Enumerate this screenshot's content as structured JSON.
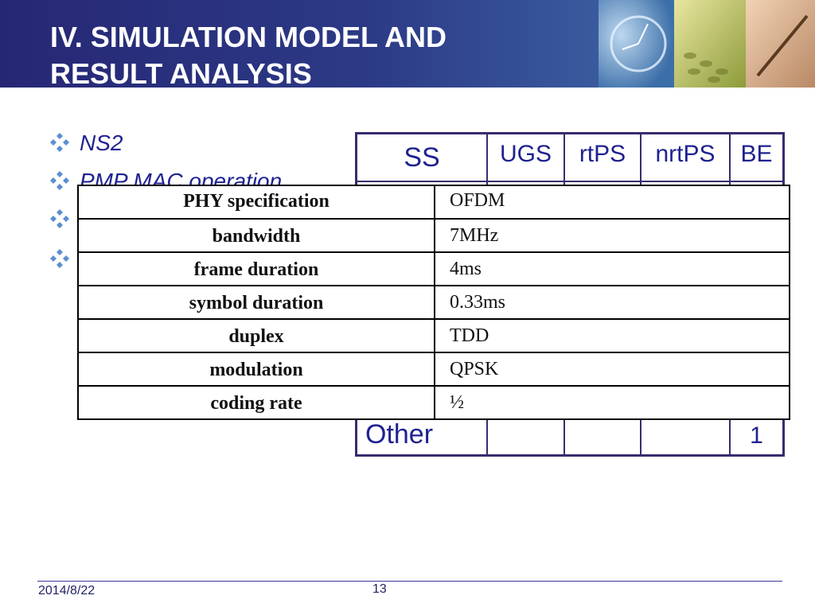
{
  "slide": {
    "title_line1": "IV. SIMULATION MODEL AND",
    "title_line2": "RESULT ANALYSIS",
    "bullet_icon": "four-diamond-bullet-icon",
    "colors": {
      "header_dark": "#262774",
      "header_light": "#4a78b4",
      "text_blue": "#1f2290",
      "table_border": "#3a2b6e"
    }
  },
  "bullets": [
    {
      "text": "NS2"
    },
    {
      "text": "PMP MAC operation"
    },
    {
      "text": ""
    },
    {
      "text": ""
    }
  ],
  "ss_table": {
    "headers": [
      "SS",
      "UGS",
      "rtPS",
      "nrtPS",
      "BE"
    ],
    "last_row": {
      "label": "Other",
      "be_value": "1"
    }
  },
  "phy_table": {
    "rows": [
      {
        "label": "PHY specification",
        "value": "OFDM"
      },
      {
        "label": "bandwidth",
        "value": "7MHz"
      },
      {
        "label": "frame duration",
        "value": "4ms"
      },
      {
        "label": "symbol duration",
        "value": "0.33ms"
      },
      {
        "label": "duplex",
        "value": "TDD"
      },
      {
        "label": "modulation",
        "value": "QPSK"
      },
      {
        "label": "coding rate",
        "value": "½"
      }
    ]
  },
  "footer": {
    "date": "2014/8/22",
    "page": "13"
  }
}
